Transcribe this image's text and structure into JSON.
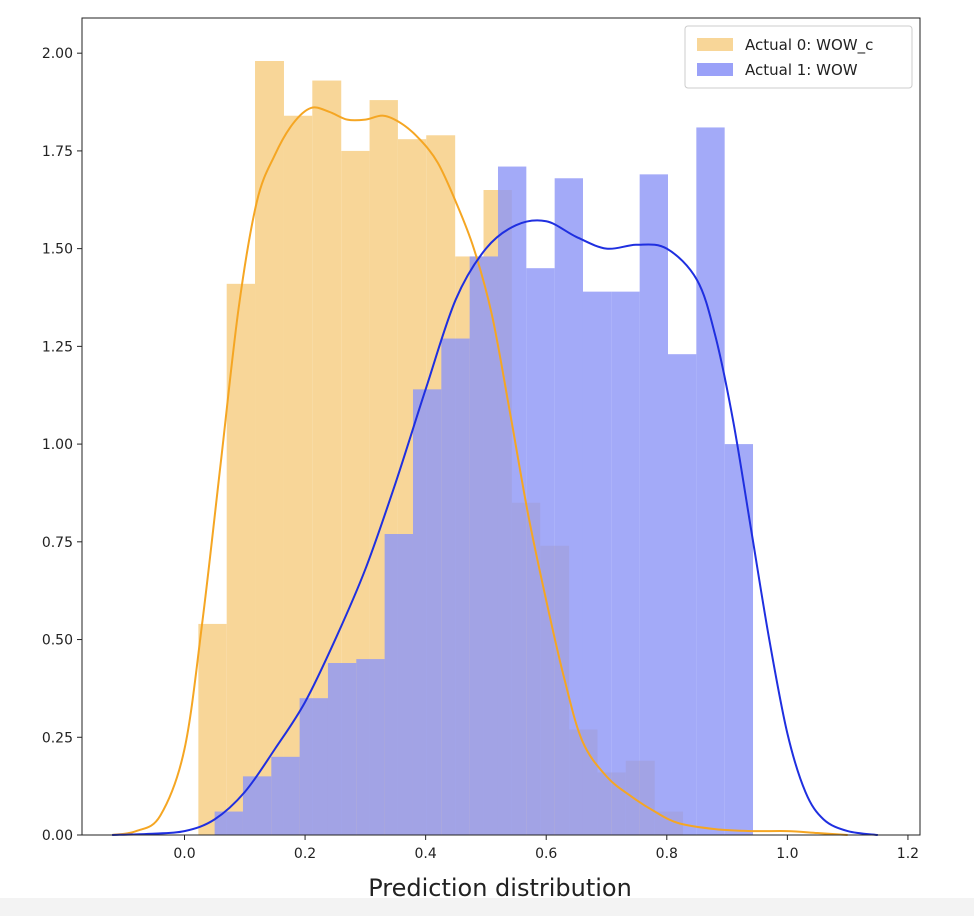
{
  "chart_data": {
    "type": "histogram",
    "xlabel": "Prediction distribution",
    "ylabel": "",
    "title": "",
    "xlim": [
      -0.17,
      1.22
    ],
    "ylim": [
      0,
      2.09
    ],
    "xticks": [
      "0.0",
      "0.2",
      "0.4",
      "0.6",
      "0.8",
      "1.0",
      "1.2"
    ],
    "yticks": [
      "0.00",
      "0.25",
      "0.50",
      "0.75",
      "1.00",
      "1.25",
      "1.50",
      "1.75",
      "2.00"
    ],
    "xtick_values": [
      0.0,
      0.2,
      0.4,
      0.6,
      0.8,
      1.0,
      1.2
    ],
    "ytick_values": [
      0.0,
      0.25,
      0.5,
      0.75,
      1.0,
      1.25,
      1.5,
      1.75,
      2.0
    ],
    "legend_position": "top-right",
    "grid": false,
    "series": [
      {
        "name": "Actual 0: WOW_c",
        "color": "#f5a623",
        "fill_color": "#f8d698",
        "bins": [
          {
            "x0": 0.023,
            "x1": 0.07,
            "value": 0.54
          },
          {
            "x0": 0.07,
            "x1": 0.117,
            "value": 1.41
          },
          {
            "x0": 0.117,
            "x1": 0.165,
            "value": 1.98
          },
          {
            "x0": 0.165,
            "x1": 0.212,
            "value": 1.84
          },
          {
            "x0": 0.212,
            "x1": 0.26,
            "value": 1.93
          },
          {
            "x0": 0.26,
            "x1": 0.307,
            "value": 1.75
          },
          {
            "x0": 0.307,
            "x1": 0.354,
            "value": 1.88
          },
          {
            "x0": 0.354,
            "x1": 0.401,
            "value": 1.78
          },
          {
            "x0": 0.401,
            "x1": 0.449,
            "value": 1.79
          },
          {
            "x0": 0.449,
            "x1": 0.496,
            "value": 1.48
          },
          {
            "x0": 0.496,
            "x1": 0.543,
            "value": 1.65
          },
          {
            "x0": 0.543,
            "x1": 0.59,
            "value": 0.85
          },
          {
            "x0": 0.59,
            "x1": 0.638,
            "value": 0.74
          },
          {
            "x0": 0.638,
            "x1": 0.685,
            "value": 0.27
          },
          {
            "x0": 0.685,
            "x1": 0.732,
            "value": 0.16
          },
          {
            "x0": 0.732,
            "x1": 0.78,
            "value": 0.19
          },
          {
            "x0": 0.78,
            "x1": 0.827,
            "value": 0.06
          }
        ],
        "kde": [
          [
            -0.12,
            0.0
          ],
          [
            -0.08,
            0.01
          ],
          [
            -0.04,
            0.05
          ],
          [
            0.0,
            0.22
          ],
          [
            0.03,
            0.55
          ],
          [
            0.06,
            0.95
          ],
          [
            0.09,
            1.35
          ],
          [
            0.12,
            1.62
          ],
          [
            0.15,
            1.74
          ],
          [
            0.18,
            1.82
          ],
          [
            0.21,
            1.86
          ],
          [
            0.24,
            1.85
          ],
          [
            0.27,
            1.83
          ],
          [
            0.3,
            1.83
          ],
          [
            0.33,
            1.84
          ],
          [
            0.36,
            1.82
          ],
          [
            0.39,
            1.78
          ],
          [
            0.42,
            1.72
          ],
          [
            0.45,
            1.62
          ],
          [
            0.48,
            1.5
          ],
          [
            0.51,
            1.33
          ],
          [
            0.54,
            1.08
          ],
          [
            0.57,
            0.82
          ],
          [
            0.6,
            0.6
          ],
          [
            0.63,
            0.4
          ],
          [
            0.66,
            0.24
          ],
          [
            0.7,
            0.15
          ],
          [
            0.74,
            0.1
          ],
          [
            0.78,
            0.06
          ],
          [
            0.82,
            0.03
          ],
          [
            0.88,
            0.015
          ],
          [
            0.94,
            0.01
          ],
          [
            1.0,
            0.01
          ],
          [
            1.05,
            0.005
          ],
          [
            1.1,
            0.0
          ]
        ]
      },
      {
        "name": "Actual 1: WOW",
        "color": "#1f2fe0",
        "fill_color": "#8f97f7",
        "bins": [
          {
            "x0": 0.05,
            "x1": 0.097,
            "value": 0.06
          },
          {
            "x0": 0.097,
            "x1": 0.144,
            "value": 0.15
          },
          {
            "x0": 0.144,
            "x1": 0.191,
            "value": 0.2
          },
          {
            "x0": 0.191,
            "x1": 0.238,
            "value": 0.35
          },
          {
            "x0": 0.238,
            "x1": 0.285,
            "value": 0.44
          },
          {
            "x0": 0.285,
            "x1": 0.332,
            "value": 0.45
          },
          {
            "x0": 0.332,
            "x1": 0.379,
            "value": 0.77
          },
          {
            "x0": 0.379,
            "x1": 0.426,
            "value": 1.14
          },
          {
            "x0": 0.426,
            "x1": 0.473,
            "value": 1.27
          },
          {
            "x0": 0.473,
            "x1": 0.52,
            "value": 1.48
          },
          {
            "x0": 0.52,
            "x1": 0.567,
            "value": 1.71
          },
          {
            "x0": 0.567,
            "x1": 0.614,
            "value": 1.45
          },
          {
            "x0": 0.614,
            "x1": 0.661,
            "value": 1.68
          },
          {
            "x0": 0.661,
            "x1": 0.708,
            "value": 1.39
          },
          {
            "x0": 0.708,
            "x1": 0.755,
            "value": 1.39
          },
          {
            "x0": 0.755,
            "x1": 0.802,
            "value": 1.69
          },
          {
            "x0": 0.802,
            "x1": 0.849,
            "value": 1.23
          },
          {
            "x0": 0.849,
            "x1": 0.896,
            "value": 1.81
          },
          {
            "x0": 0.896,
            "x1": 0.943,
            "value": 1.0
          }
        ],
        "kde": [
          [
            -0.12,
            0.0
          ],
          [
            -0.06,
            0.003
          ],
          [
            0.0,
            0.01
          ],
          [
            0.05,
            0.04
          ],
          [
            0.1,
            0.11
          ],
          [
            0.15,
            0.22
          ],
          [
            0.2,
            0.34
          ],
          [
            0.25,
            0.5
          ],
          [
            0.3,
            0.68
          ],
          [
            0.35,
            0.9
          ],
          [
            0.4,
            1.14
          ],
          [
            0.45,
            1.37
          ],
          [
            0.5,
            1.5
          ],
          [
            0.55,
            1.56
          ],
          [
            0.6,
            1.57
          ],
          [
            0.65,
            1.53
          ],
          [
            0.7,
            1.5
          ],
          [
            0.75,
            1.51
          ],
          [
            0.8,
            1.5
          ],
          [
            0.85,
            1.42
          ],
          [
            0.88,
            1.28
          ],
          [
            0.91,
            1.06
          ],
          [
            0.94,
            0.78
          ],
          [
            0.97,
            0.5
          ],
          [
            1.0,
            0.26
          ],
          [
            1.03,
            0.11
          ],
          [
            1.06,
            0.04
          ],
          [
            1.1,
            0.01
          ],
          [
            1.15,
            0.0
          ]
        ]
      }
    ]
  }
}
